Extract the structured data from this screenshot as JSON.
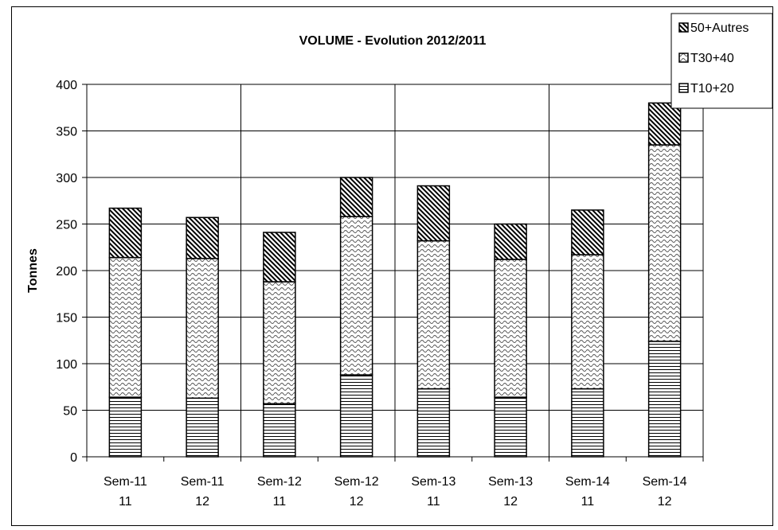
{
  "chart_data": {
    "type": "bar",
    "stacked": true,
    "title": "VOLUME - Evolution 2012/2011",
    "xlabel": "",
    "ylabel": "Tonnes",
    "ylim": [
      0,
      400
    ],
    "yticks": [
      0,
      50,
      100,
      150,
      200,
      250,
      300,
      350,
      400
    ],
    "grid": true,
    "legend_position": "top-right",
    "categories": [
      [
        "Sem-11",
        "11"
      ],
      [
        "Sem-11",
        "12"
      ],
      [
        "Sem-12",
        "11"
      ],
      [
        "Sem-12",
        "12"
      ],
      [
        "Sem-13",
        "11"
      ],
      [
        "Sem-13",
        "12"
      ],
      [
        "Sem-14",
        "11"
      ],
      [
        "Sem-14",
        "12"
      ]
    ],
    "series": [
      {
        "name": "T10+20",
        "pattern": "horizontal-lines",
        "values": [
          64,
          63,
          57,
          88,
          73,
          64,
          73,
          124
        ]
      },
      {
        "name": "T30+40",
        "pattern": "wave",
        "values": [
          150,
          150,
          131,
          170,
          159,
          148,
          144,
          211
        ]
      },
      {
        "name": "50+Autres",
        "pattern": "diagonal-lines",
        "values": [
          53,
          44,
          53,
          42,
          59,
          38,
          48,
          45
        ]
      }
    ],
    "legend_order": [
      "50+Autres",
      "T30+40",
      "T10+20"
    ]
  }
}
